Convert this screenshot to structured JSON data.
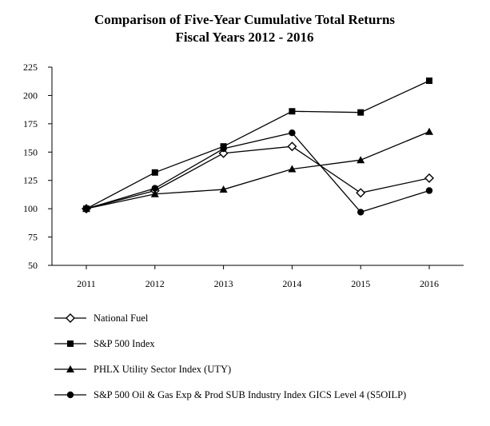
{
  "chart_data": {
    "type": "line",
    "title": "Comparison of Five-Year Cumulative Total Returns",
    "subtitle": "Fiscal Years 2012 - 2016",
    "xlabel": "",
    "ylabel": "",
    "x": [
      "2011",
      "2012",
      "2013",
      "2014",
      "2015",
      "2016"
    ],
    "ylim": [
      50,
      225
    ],
    "yticks": [
      50,
      75,
      100,
      125,
      150,
      175,
      200,
      225
    ],
    "grid": false,
    "legend_position": "bottom",
    "series": [
      {
        "name": "National Fuel",
        "marker": "open-diamond",
        "values": [
          100,
          116,
          149,
          155,
          114,
          127
        ]
      },
      {
        "name": "S&P 500 Index",
        "marker": "filled-square",
        "values": [
          100,
          132,
          155,
          186,
          185,
          213
        ]
      },
      {
        "name": "PHLX Utility Sector Index (UTY)",
        "marker": "filled-triangle",
        "values": [
          100,
          113,
          117,
          135,
          143,
          168
        ]
      },
      {
        "name": "S&P 500 Oil & Gas Exp & Prod SUB Industry Index GICS Level 4 (S5OILP)",
        "marker": "filled-circle",
        "values": [
          100,
          118,
          153,
          167,
          97,
          116
        ]
      }
    ]
  }
}
